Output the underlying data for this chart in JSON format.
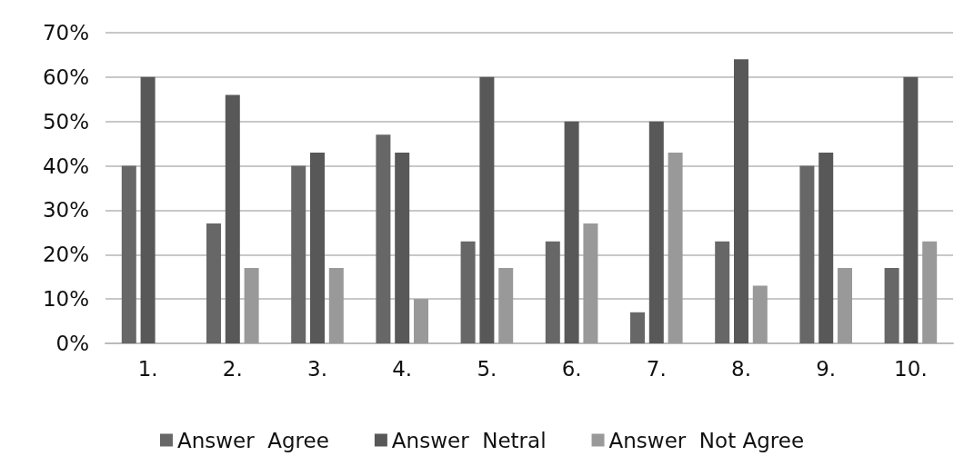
{
  "chart_data": {
    "type": "bar",
    "categories": [
      "1.",
      "2.",
      "3.",
      "4.",
      "5.",
      "6.",
      "7.",
      "8.",
      "9.",
      "10."
    ],
    "series": [
      {
        "name": "Answer  Agree",
        "color": "#676767",
        "values": [
          40,
          27,
          40,
          47,
          23,
          23,
          7,
          23,
          40,
          17
        ]
      },
      {
        "name": "Answer  Netral",
        "color": "#585858",
        "values": [
          60,
          56,
          43,
          43,
          60,
          50,
          50,
          64,
          43,
          60
        ]
      },
      {
        "name": "Answer  Not Agree",
        "color": "#999999",
        "values": [
          null,
          17,
          17,
          10,
          17,
          27,
          43,
          13,
          17,
          23
        ]
      }
    ],
    "ylim": [
      0,
      70
    ],
    "yticks": [
      {
        "value": 0,
        "label": "0%"
      },
      {
        "value": 10,
        "label": "10%"
      },
      {
        "value": 20,
        "label": "20%"
      },
      {
        "value": 30,
        "label": "30%"
      },
      {
        "value": 40,
        "label": "40%"
      },
      {
        "value": 50,
        "label": "50%"
      },
      {
        "value": 60,
        "label": "60%"
      },
      {
        "value": 70,
        "label": "70%"
      }
    ],
    "grid": "y",
    "legend": "bottom"
  }
}
